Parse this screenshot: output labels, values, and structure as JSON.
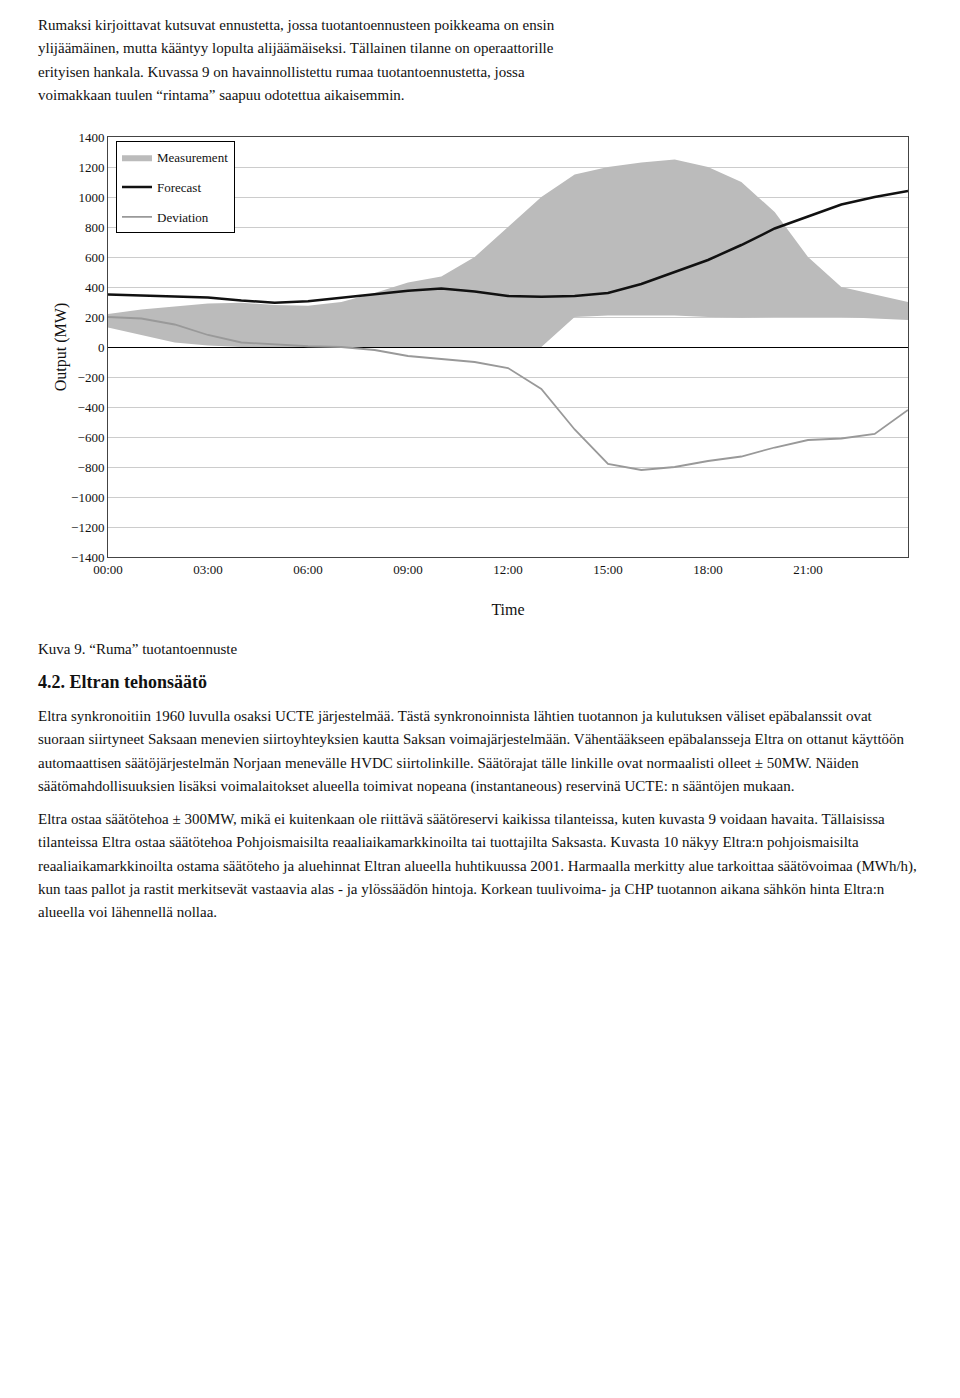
{
  "text_top": [
    "Rumaksi kirjoittavat kutsuvat ennustetta, jossa tuotantoennusteen poikkeama on ensin",
    "ylijäämäinen, mutta kääntyy lopulta alijäämäiseksi. Tällainen tilanne on operaattorille",
    "erityisen hankala. Kuvassa 9 on havainnollistettu rumaa tuotantoennustetta, jossa",
    "voimakkaan tuulen “rintama” saapuu odotettua aikaisemmin."
  ],
  "caption": "Kuva 9. “Ruma” tuotantoennuste",
  "section_title": "4.2. Eltran tehonsäätö",
  "text_bottom": [
    "Eltra synkronoitiin 1960 luvulla osaksi UCTE järjestelmää. Tästä synkronoinnista lähtien tuotannon ja kulutuksen väliset epäbalanssit ovat suoraan siirtyneet Saksaan menevien siirtoyhteyksien kautta Saksan voimajärjestelmään. Vähentääkseen epäbalansseja Eltra on ottanut käyttöön automaattisen säätöjärjestelmän Norjaan menevälle HVDC siirtolinkille. Säätörajat tälle linkille ovat normaalisti olleet ± 50MW. Näiden säätömahdollisuuksien lisäksi voimalaitokset alueella toimivat nopeana (instantaneous) reservinä UCTE: n sääntöjen mukaan.",
    "Eltra ostaa säätötehoa ± 300MW, mikä ei kuitenkaan ole riittävä säätöreservi kaikissa tilanteissa, kuten kuvasta 9 voidaan havaita. Tällaisissa tilanteissa Eltra ostaa säätötehoa Pohjoismaisilta reaaliaikamarkkinoilta tai tuottajilta Saksasta. Kuvasta 10 näkyy Eltra:n pohjoismaisilta reaaliaikamarkkinoilta ostama säätöteho ja aluehinnat Eltran alueella huhtikuussa 2001. Harmaalla merkitty alue tarkoittaa säätövoimaa (MWh/h), kun taas pallot ja rastit merkitsevät vastaavia alas - ja ylössäädön hintoja. Korkean tuulivoima- ja CHP tuotannon aikana sähkön hinta Eltra:n alueella voi lähennellä nollaa."
  ],
  "chart_data": {
    "type": "line",
    "x_label": "Time",
    "y_label": "Output (MW)",
    "x": [
      0,
      1,
      2,
      3,
      4,
      5,
      6,
      7,
      8,
      9,
      10,
      11,
      12,
      13,
      14,
      15,
      16,
      17,
      18,
      19,
      20,
      21,
      22,
      23,
      24
    ],
    "series": [
      {
        "name": "Measurement",
        "type": "area",
        "color": "#bbbbbb",
        "lower": [
          130,
          80,
          30,
          10,
          0,
          0,
          0,
          0,
          0,
          0,
          0,
          0,
          0,
          0,
          200,
          210,
          210,
          210,
          200,
          195,
          200,
          200,
          200,
          190,
          180
        ],
        "upper": [
          220,
          250,
          270,
          290,
          295,
          280,
          275,
          300,
          360,
          430,
          470,
          600,
          800,
          1000,
          1150,
          1200,
          1230,
          1250,
          1200,
          1100,
          900,
          600,
          400,
          350,
          300
        ]
      },
      {
        "name": "Forecast",
        "type": "line",
        "color": "#111111",
        "values": [
          350,
          345,
          335,
          330,
          310,
          295,
          305,
          330,
          355,
          375,
          390,
          370,
          340,
          335,
          340,
          360,
          420,
          500,
          580,
          680,
          790,
          870,
          950,
          1000,
          1040
        ]
      },
      {
        "name": "Deviation",
        "type": "line",
        "color": "#999999",
        "values": [
          200,
          190,
          150,
          80,
          30,
          15,
          5,
          0,
          -20,
          -60,
          -80,
          -100,
          -140,
          -280,
          -550,
          -780,
          -820,
          -800,
          -760,
          -730,
          -670,
          -620,
          -610,
          -580,
          -420
        ]
      }
    ],
    "xlim": [
      0,
      24
    ],
    "xticks": [
      {
        "value": 0,
        "label": "00:00"
      },
      {
        "value": 3,
        "label": "03:00"
      },
      {
        "value": 6,
        "label": "06:00"
      },
      {
        "value": 9,
        "label": "09:00"
      },
      {
        "value": 12,
        "label": "12:00"
      },
      {
        "value": 15,
        "label": "15:00"
      },
      {
        "value": 18,
        "label": "18:00"
      },
      {
        "value": 21,
        "label": "21:00"
      }
    ],
    "ylim": [
      -1400,
      1400
    ],
    "yticks": [
      {
        "value": -1400,
        "label": "−1400"
      },
      {
        "value": -1200,
        "label": "−1200"
      },
      {
        "value": -1000,
        "label": "−1000"
      },
      {
        "value": -800,
        "label": "−800"
      },
      {
        "value": -600,
        "label": "−600"
      },
      {
        "value": -400,
        "label": "−400"
      },
      {
        "value": -200,
        "label": "−200"
      },
      0,
      200,
      400,
      600,
      800,
      1000,
      1200,
      1400
    ],
    "grid": "y",
    "legend": "upper left"
  }
}
